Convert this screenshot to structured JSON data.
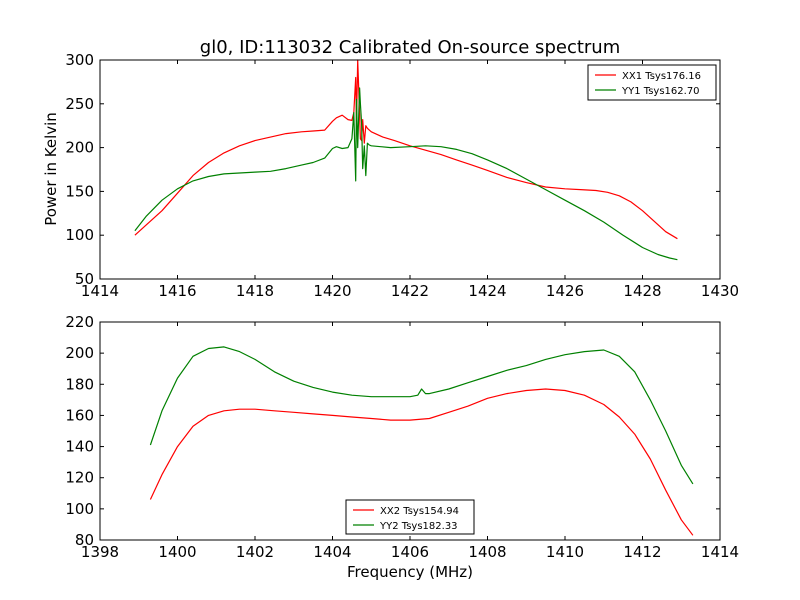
{
  "chart_data": [
    {
      "type": "line",
      "title": "gl0, ID:113032 Calibrated On-source spectrum",
      "xlabel": "",
      "ylabel": "Power in Kelvin",
      "xlim": [
        1414,
        1430
      ],
      "ylim": [
        50,
        300
      ],
      "xticks": [
        "1414",
        "1416",
        "1418",
        "1420",
        "1422",
        "1424",
        "1426",
        "1428",
        "1430"
      ],
      "yticks": [
        "50",
        "100",
        "150",
        "200",
        "250",
        "300"
      ],
      "legend_position": "upper-right",
      "grid": false,
      "series": [
        {
          "name": "XX1 Tsys176.16",
          "color": "#ff0000",
          "x": [
            1414.9,
            1415.2,
            1415.6,
            1416.0,
            1416.4,
            1416.8,
            1417.2,
            1417.6,
            1418.0,
            1418.4,
            1418.8,
            1419.2,
            1419.5,
            1419.8,
            1420.0,
            1420.1,
            1420.25,
            1420.4,
            1420.5,
            1420.55,
            1420.6,
            1420.62,
            1420.65,
            1420.7,
            1420.72,
            1420.75,
            1420.78,
            1420.82,
            1420.86,
            1420.9,
            1420.95,
            1421.0,
            1421.3,
            1421.6,
            1422.0,
            1422.4,
            1422.8,
            1423.2,
            1423.6,
            1424.0,
            1424.5,
            1425.0,
            1425.5,
            1426.0,
            1426.4,
            1426.8,
            1427.1,
            1427.4,
            1427.7,
            1428.0,
            1428.3,
            1428.6,
            1428.9
          ],
          "y": [
            100,
            112,
            128,
            148,
            168,
            183,
            194,
            202,
            208,
            212,
            216,
            218,
            219,
            220,
            230,
            234,
            237,
            232,
            231,
            240,
            280,
            230,
            300,
            238,
            210,
            208,
            232,
            205,
            225,
            222,
            220,
            218,
            212,
            208,
            202,
            197,
            192,
            186,
            180,
            174,
            166,
            160,
            155,
            153,
            152,
            151,
            149,
            145,
            138,
            128,
            116,
            104,
            96
          ]
        },
        {
          "name": "YY1 Tsys162.70",
          "color": "#008000",
          "x": [
            1414.9,
            1415.2,
            1415.6,
            1416.0,
            1416.4,
            1416.8,
            1417.2,
            1417.6,
            1418.0,
            1418.4,
            1418.8,
            1419.2,
            1419.5,
            1419.8,
            1420.0,
            1420.1,
            1420.25,
            1420.4,
            1420.5,
            1420.55,
            1420.6,
            1420.62,
            1420.65,
            1420.7,
            1420.72,
            1420.75,
            1420.78,
            1420.82,
            1420.86,
            1420.9,
            1420.95,
            1421.0,
            1421.5,
            1422.0,
            1422.4,
            1422.8,
            1423.2,
            1423.6,
            1424.0,
            1424.5,
            1425.0,
            1425.5,
            1426.0,
            1426.5,
            1427.0,
            1427.5,
            1428.0,
            1428.4,
            1428.7,
            1428.9
          ],
          "y": [
            105,
            122,
            140,
            153,
            162,
            167,
            170,
            171,
            172,
            173,
            176,
            180,
            183,
            188,
            199,
            201,
            199,
            200,
            210,
            240,
            162,
            255,
            200,
            268,
            250,
            228,
            176,
            202,
            168,
            205,
            203,
            202,
            200,
            201,
            202,
            201,
            198,
            193,
            186,
            176,
            164,
            152,
            140,
            128,
            115,
            100,
            86,
            78,
            74,
            72
          ]
        }
      ]
    },
    {
      "type": "line",
      "title": "",
      "xlabel": "Frequency (MHz)",
      "ylabel": "",
      "xlim": [
        1398,
        1414
      ],
      "ylim": [
        80,
        220
      ],
      "xticks": [
        "1398",
        "1400",
        "1402",
        "1404",
        "1406",
        "1408",
        "1410",
        "1412",
        "1414"
      ],
      "yticks": [
        "80",
        "100",
        "120",
        "140",
        "160",
        "180",
        "200",
        "220"
      ],
      "legend_position": "lower-center",
      "grid": false,
      "series": [
        {
          "name": "XX2 Tsys154.94",
          "color": "#ff0000",
          "x": [
            1399.3,
            1399.6,
            1400.0,
            1400.4,
            1400.8,
            1401.2,
            1401.6,
            1402.0,
            1402.5,
            1403.0,
            1403.5,
            1404.0,
            1404.5,
            1405.0,
            1405.5,
            1406.0,
            1406.5,
            1407.0,
            1407.5,
            1408.0,
            1408.5,
            1409.0,
            1409.5,
            1410.0,
            1410.5,
            1411.0,
            1411.4,
            1411.8,
            1412.2,
            1412.6,
            1413.0,
            1413.3
          ],
          "y": [
            106,
            122,
            140,
            153,
            160,
            163,
            164,
            164,
            163,
            162,
            161,
            160,
            159,
            158,
            157,
            157,
            158,
            162,
            166,
            171,
            174,
            176,
            177,
            176,
            173,
            167,
            159,
            148,
            132,
            112,
            93,
            83
          ]
        },
        {
          "name": "YY2 Tsys182.33",
          "color": "#008000",
          "x": [
            1399.3,
            1399.6,
            1400.0,
            1400.4,
            1400.8,
            1401.2,
            1401.6,
            1402.0,
            1402.5,
            1403.0,
            1403.5,
            1404.0,
            1404.5,
            1405.0,
            1405.5,
            1406.0,
            1406.2,
            1406.3,
            1406.4,
            1406.5,
            1407.0,
            1407.5,
            1408.0,
            1408.5,
            1409.0,
            1409.5,
            1410.0,
            1410.5,
            1411.0,
            1411.4,
            1411.8,
            1412.2,
            1412.6,
            1413.0,
            1413.3
          ],
          "y": [
            141,
            163,
            184,
            198,
            203,
            204,
            201,
            196,
            188,
            182,
            178,
            175,
            173,
            172,
            172,
            172,
            173,
            177,
            174,
            174,
            177,
            181,
            185,
            189,
            192,
            196,
            199,
            201,
            202,
            198,
            188,
            170,
            150,
            128,
            116
          ]
        }
      ]
    }
  ]
}
